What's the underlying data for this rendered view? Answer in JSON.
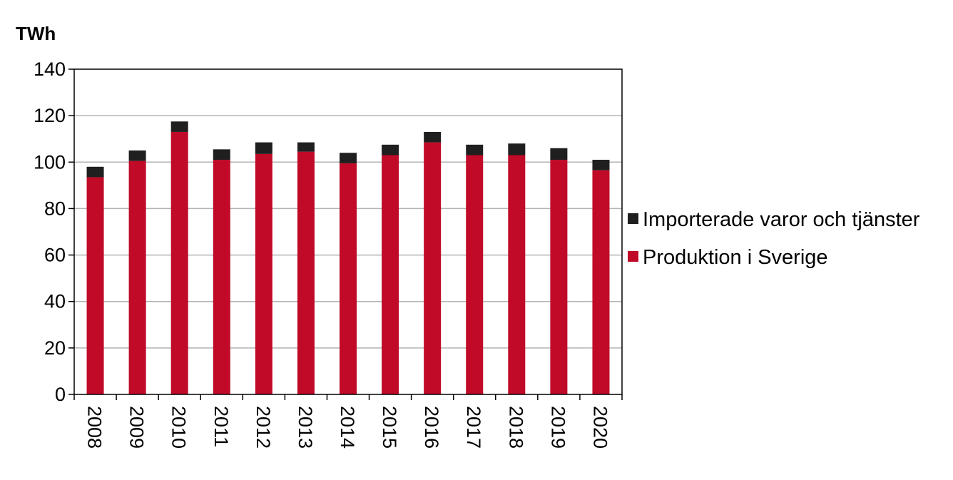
{
  "chart_data": {
    "type": "bar",
    "stacked": true,
    "ylabel": "TWh",
    "xlabel": "",
    "ylim": [
      0,
      140
    ],
    "yticks": [
      0,
      20,
      40,
      60,
      80,
      100,
      120,
      140
    ],
    "grid": true,
    "legend_position": "right",
    "categories": [
      "2008",
      "2009",
      "2010",
      "2011",
      "2012",
      "2013",
      "2014",
      "2015",
      "2016",
      "2017",
      "2018",
      "2019",
      "2020"
    ],
    "series": [
      {
        "name": "Produktion i Sverige",
        "color": "#c00a27",
        "values": [
          93.5,
          100.5,
          113,
          101,
          103.5,
          104.5,
          99.5,
          103,
          108.5,
          103,
          103,
          101,
          96.5
        ]
      },
      {
        "name": "Importerade varor och tjänster",
        "color": "#1f1f1f",
        "values": [
          4.5,
          4.5,
          4.5,
          4.5,
          5,
          4,
          4.5,
          4.5,
          4.5,
          4.5,
          5,
          5,
          4.5
        ]
      }
    ],
    "legend_order": [
      1,
      0
    ]
  }
}
